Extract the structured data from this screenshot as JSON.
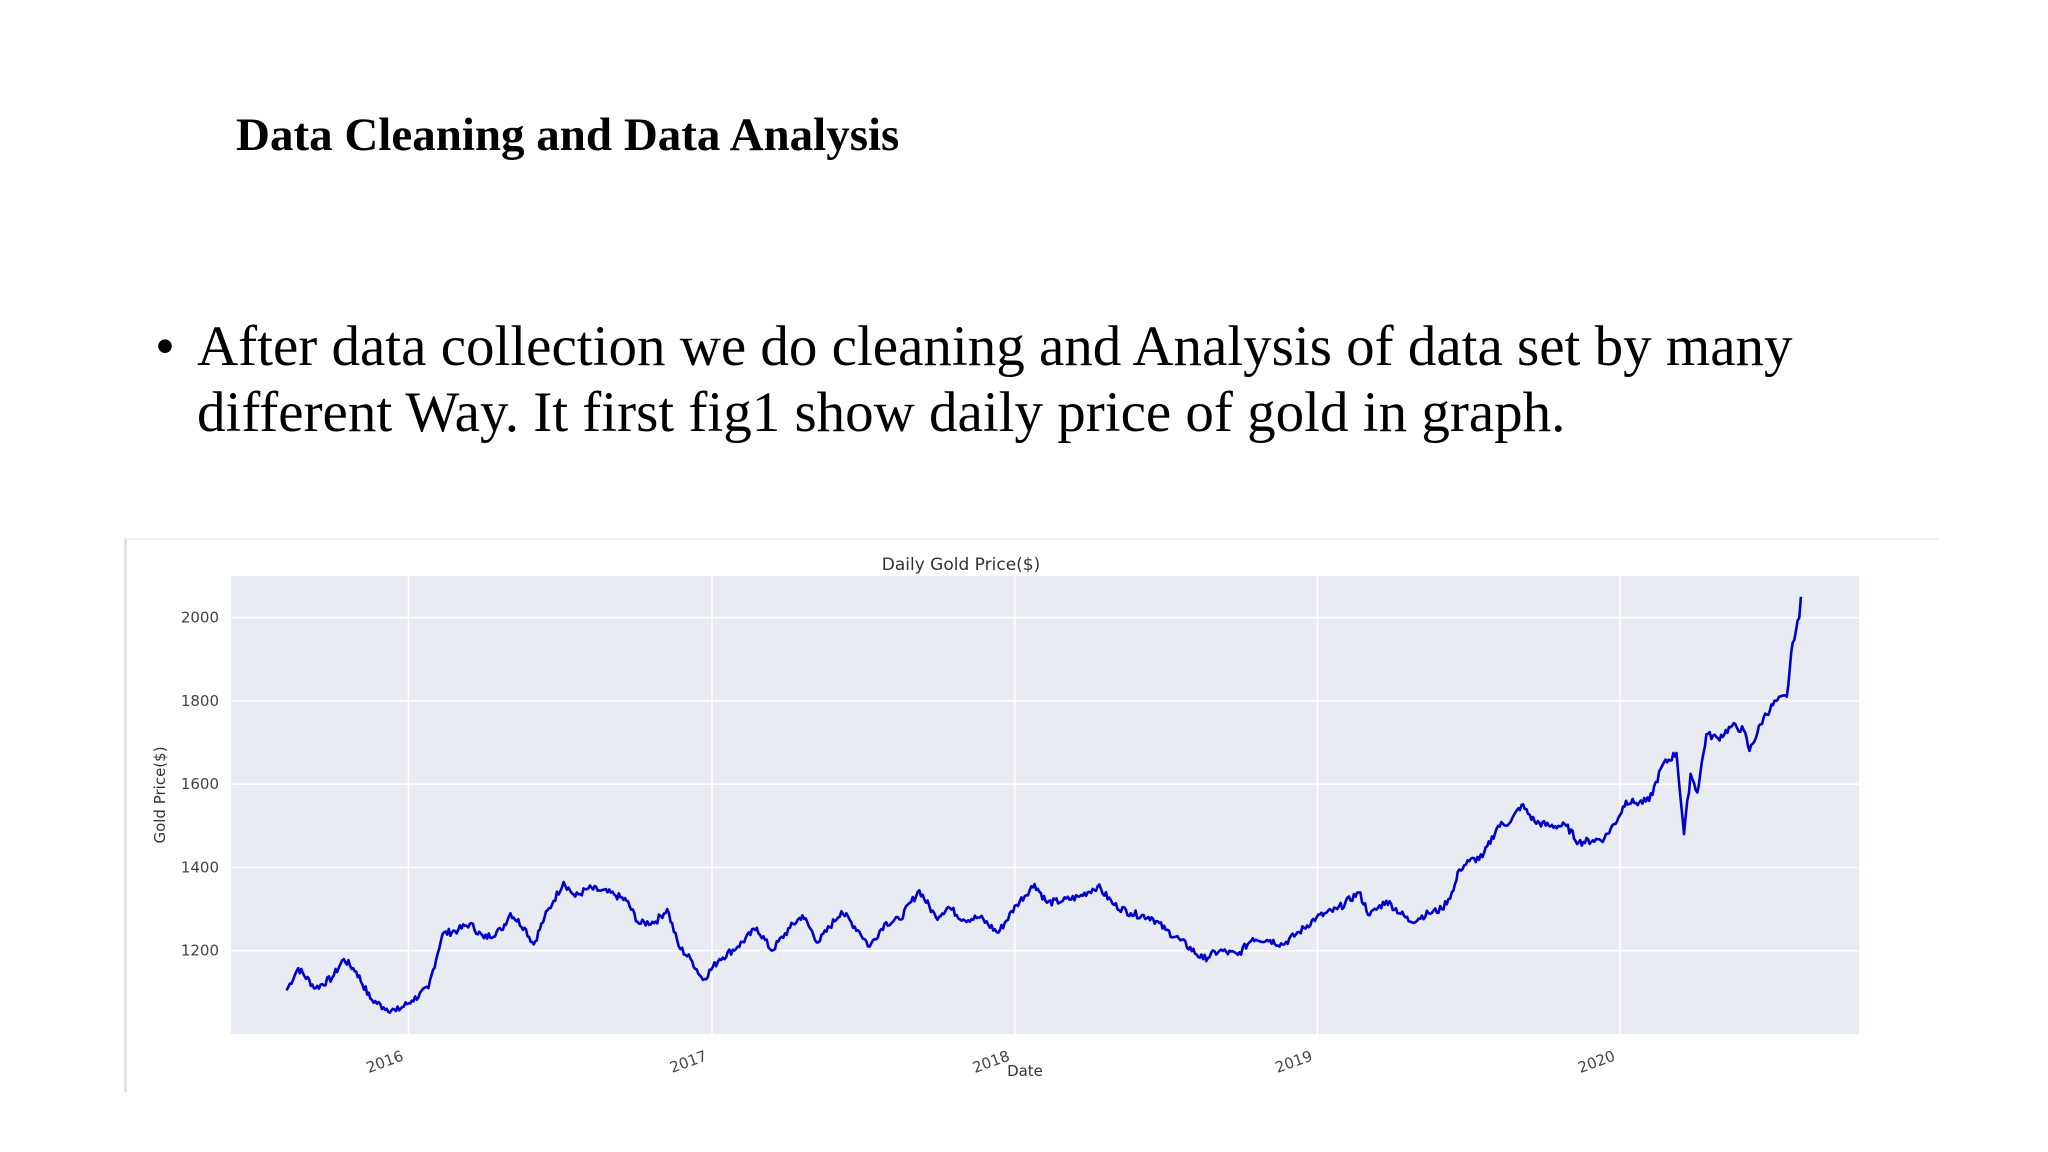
{
  "slide": {
    "title": "Data Cleaning and Data Analysis",
    "bullet_symbol": "•",
    "bullet_text": "After data collection we do cleaning and Analysis of data set by many different Way. It first fig1 show daily price of gold in graph."
  },
  "chart_data": {
    "type": "line",
    "title": "Daily Gold Price($)",
    "xlabel": "Date",
    "ylabel": "Gold Price($)",
    "x_ticks": [
      "2016",
      "2017",
      "2018",
      "2019",
      "2020"
    ],
    "y_ticks": [
      1200,
      1400,
      1600,
      1800,
      2000
    ],
    "xlim": [
      "2015-06-01",
      "2020-10-15"
    ],
    "ylim": [
      1000,
      2100
    ],
    "grid": true,
    "background": "#e9ebf2",
    "line_color": "#0000cd",
    "series": [
      {
        "points": [
          [
            "2015-08-07",
            1105
          ],
          [
            "2015-08-21",
            1158
          ],
          [
            "2015-09-11",
            1110
          ],
          [
            "2015-10-01",
            1135
          ],
          [
            "2015-10-15",
            1180
          ],
          [
            "2015-10-30",
            1150
          ],
          [
            "2015-11-16",
            1085
          ],
          [
            "2015-12-02",
            1064
          ],
          [
            "2015-12-17",
            1055
          ],
          [
            "2016-01-05",
            1080
          ],
          [
            "2016-01-25",
            1110
          ],
          [
            "2016-02-11",
            1240
          ],
          [
            "2016-03-01",
            1250
          ],
          [
            "2016-03-15",
            1265
          ],
          [
            "2016-04-01",
            1230
          ],
          [
            "2016-04-22",
            1250
          ],
          [
            "2016-05-03",
            1290
          ],
          [
            "2016-05-20",
            1255
          ],
          [
            "2016-05-31",
            1215
          ],
          [
            "2016-06-13",
            1280
          ],
          [
            "2016-06-24",
            1320
          ],
          [
            "2016-07-06",
            1365
          ],
          [
            "2016-07-20",
            1330
          ],
          [
            "2016-08-05",
            1350
          ],
          [
            "2016-08-18",
            1345
          ],
          [
            "2016-09-05",
            1335
          ],
          [
            "2016-09-20",
            1320
          ],
          [
            "2016-10-05",
            1265
          ],
          [
            "2016-10-25",
            1270
          ],
          [
            "2016-11-08",
            1300
          ],
          [
            "2016-11-22",
            1210
          ],
          [
            "2016-12-08",
            1175
          ],
          [
            "2016-12-21",
            1130
          ],
          [
            "2017-01-10",
            1180
          ],
          [
            "2017-02-01",
            1210
          ],
          [
            "2017-02-24",
            1255
          ],
          [
            "2017-03-14",
            1200
          ],
          [
            "2017-04-05",
            1255
          ],
          [
            "2017-04-20",
            1285
          ],
          [
            "2017-05-09",
            1220
          ],
          [
            "2017-06-06",
            1295
          ],
          [
            "2017-06-28",
            1245
          ],
          [
            "2017-07-10",
            1210
          ],
          [
            "2017-07-28",
            1265
          ],
          [
            "2017-08-15",
            1275
          ],
          [
            "2017-09-08",
            1345
          ],
          [
            "2017-09-28",
            1280
          ],
          [
            "2017-10-13",
            1305
          ],
          [
            "2017-10-31",
            1275
          ],
          [
            "2017-11-20",
            1280
          ],
          [
            "2017-12-12",
            1243
          ],
          [
            "2018-01-03",
            1310
          ],
          [
            "2018-01-25",
            1360
          ],
          [
            "2018-02-09",
            1315
          ],
          [
            "2018-02-28",
            1320
          ],
          [
            "2018-03-20",
            1330
          ],
          [
            "2018-04-11",
            1355
          ],
          [
            "2018-05-01",
            1310
          ],
          [
            "2018-05-21",
            1290
          ],
          [
            "2018-06-15",
            1280
          ],
          [
            "2018-07-02",
            1250
          ],
          [
            "2018-07-20",
            1225
          ],
          [
            "2018-08-16",
            1180
          ],
          [
            "2018-09-05",
            1200
          ],
          [
            "2018-09-27",
            1190
          ],
          [
            "2018-10-15",
            1230
          ],
          [
            "2018-11-05",
            1225
          ],
          [
            "2018-11-20",
            1215
          ],
          [
            "2018-12-10",
            1245
          ],
          [
            "2018-12-31",
            1280
          ],
          [
            "2019-01-25",
            1300
          ],
          [
            "2019-02-20",
            1340
          ],
          [
            "2019-03-05",
            1285
          ],
          [
            "2019-03-25",
            1320
          ],
          [
            "2019-04-23",
            1270
          ],
          [
            "2019-05-15",
            1290
          ],
          [
            "2019-05-31",
            1300
          ],
          [
            "2019-06-14",
            1345
          ],
          [
            "2019-06-21",
            1395
          ],
          [
            "2019-07-03",
            1415
          ],
          [
            "2019-07-19",
            1425
          ],
          [
            "2019-08-07",
            1500
          ],
          [
            "2019-08-22",
            1510
          ],
          [
            "2019-09-04",
            1550
          ],
          [
            "2019-09-20",
            1510
          ],
          [
            "2019-10-07",
            1500
          ],
          [
            "2019-10-28",
            1500
          ],
          [
            "2019-11-12",
            1460
          ],
          [
            "2019-11-29",
            1465
          ],
          [
            "2019-12-13",
            1470
          ],
          [
            "2019-12-30",
            1520
          ],
          [
            "2020-01-08",
            1560
          ],
          [
            "2020-01-20",
            1555
          ],
          [
            "2020-02-05",
            1560
          ],
          [
            "2020-02-21",
            1645
          ],
          [
            "2020-03-09",
            1675
          ],
          [
            "2020-03-18",
            1480
          ],
          [
            "2020-03-26",
            1625
          ],
          [
            "2020-04-03",
            1580
          ],
          [
            "2020-04-14",
            1720
          ],
          [
            "2020-04-28",
            1710
          ],
          [
            "2020-05-15",
            1740
          ],
          [
            "2020-05-29",
            1730
          ],
          [
            "2020-06-05",
            1680
          ],
          [
            "2020-06-22",
            1760
          ],
          [
            "2020-07-07",
            1800
          ],
          [
            "2020-07-20",
            1810
          ],
          [
            "2020-07-27",
            1940
          ],
          [
            "2020-08-04",
            2000
          ],
          [
            "2020-08-06",
            2050
          ]
        ]
      }
    ]
  }
}
